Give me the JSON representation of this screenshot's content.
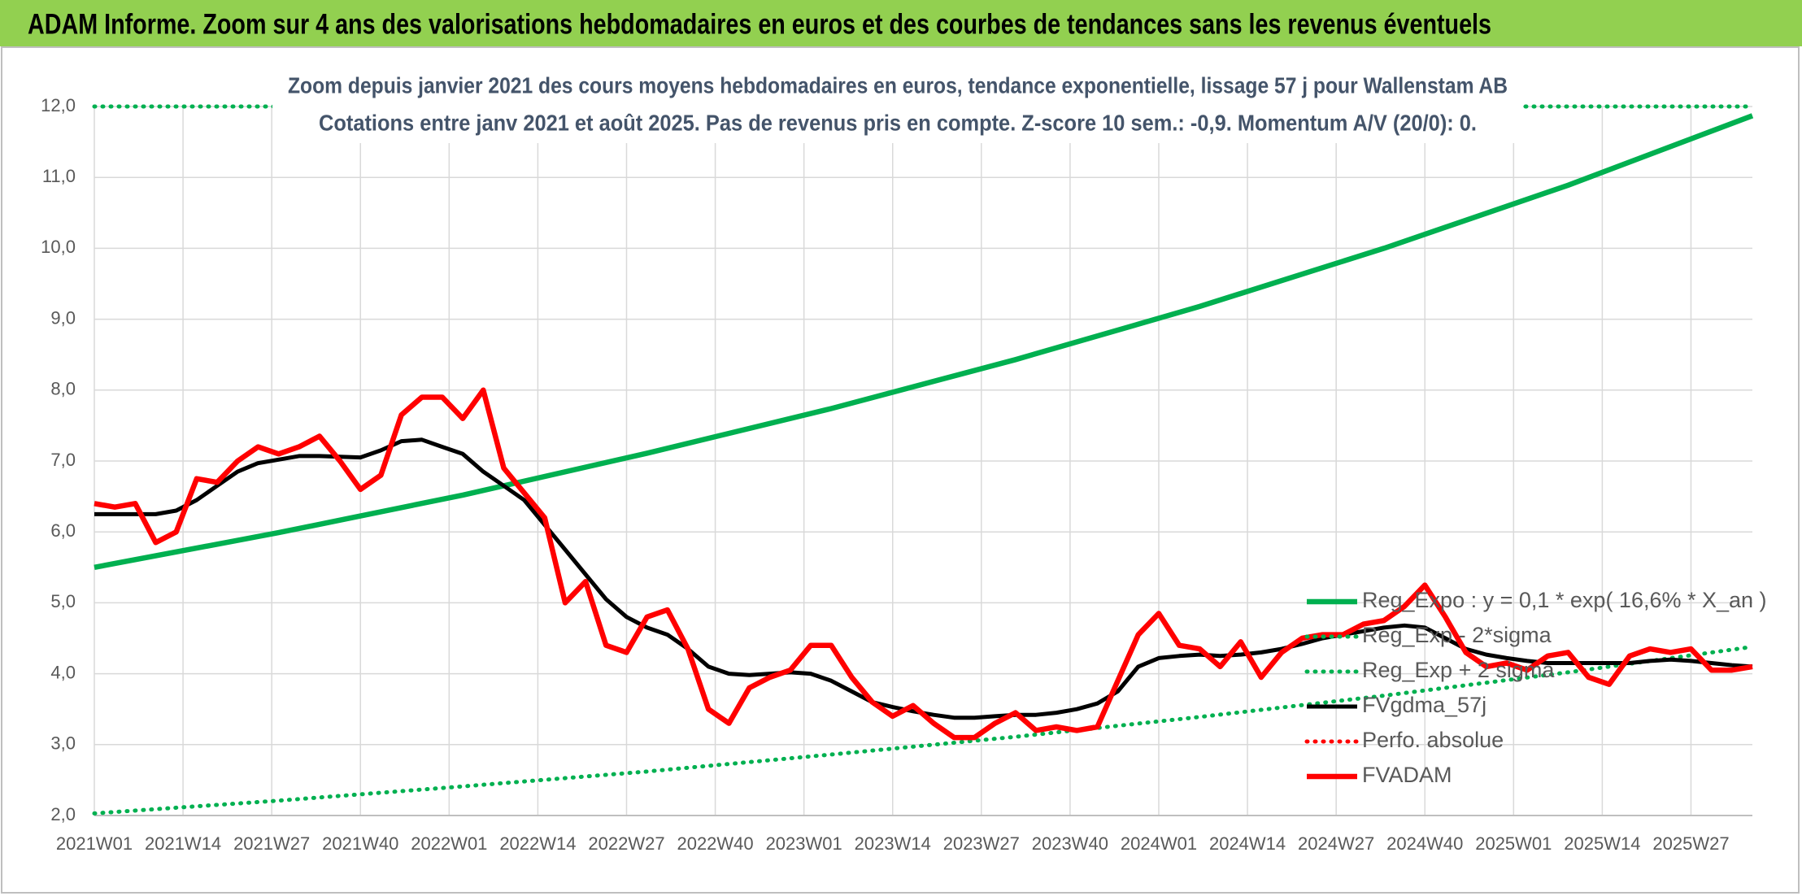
{
  "chart_data": {
    "type": "line",
    "title": "ADAM Informe. Zoom sur 4 ans des valorisations hebdomadaires en euros et des courbes de tendances sans les revenus éventuels",
    "subtitle": [
      "Zoom depuis janvier 2021 des cours moyens hebdomadaires en euros, tendance exponentielle, lissage 57 j pour Wallenstam AB",
      "Cotations entre janv 2021 et août 2025. Pas de revenus pris en compte. Z-score 10 sem.: -0,9. Momentum A/V (20/0): 0."
    ],
    "xlim": [
      0,
      243
    ],
    "xticks": [
      {
        "value": 0,
        "label": "2021W01"
      },
      {
        "value": 13,
        "label": "2021W14"
      },
      {
        "value": 26,
        "label": "2021W27"
      },
      {
        "value": 39,
        "label": "2021W40"
      },
      {
        "value": 52,
        "label": "2022W01"
      },
      {
        "value": 65,
        "label": "2022W14"
      },
      {
        "value": 78,
        "label": "2022W27"
      },
      {
        "value": 91,
        "label": "2022W40"
      },
      {
        "value": 104,
        "label": "2023W01"
      },
      {
        "value": 117,
        "label": "2023W14"
      },
      {
        "value": 130,
        "label": "2023W27"
      },
      {
        "value": 143,
        "label": "2023W40"
      },
      {
        "value": 156,
        "label": "2024W01"
      },
      {
        "value": 169,
        "label": "2024W14"
      },
      {
        "value": 182,
        "label": "2024W27"
      },
      {
        "value": 195,
        "label": "2024W40"
      },
      {
        "value": 208,
        "label": "2025W01"
      },
      {
        "value": 221,
        "label": "2025W14"
      },
      {
        "value": 234,
        "label": "2025W27"
      }
    ],
    "ylim": [
      2,
      12
    ],
    "yticks": [
      {
        "value": 2,
        "label": "2,0"
      },
      {
        "value": 3,
        "label": "3,0"
      },
      {
        "value": 4,
        "label": "4,0"
      },
      {
        "value": 5,
        "label": "5,0"
      },
      {
        "value": 6,
        "label": "6,0"
      },
      {
        "value": 7,
        "label": "7,0"
      },
      {
        "value": 8,
        "label": "8,0"
      },
      {
        "value": 9,
        "label": "9,0"
      },
      {
        "value": 10,
        "label": "10,0"
      },
      {
        "value": 11,
        "label": "11,0"
      },
      {
        "value": 12,
        "label": "12,0"
      }
    ],
    "grid": true,
    "legend": "lower right",
    "series": [
      {
        "name": "Reg_Expo : y = 0,1 * exp( 16,6% *  X_an )",
        "color": "#00b050",
        "dash": false,
        "x": [
          0,
          27,
          54,
          81,
          108,
          135,
          162,
          189,
          216,
          243
        ],
        "values": [
          5.5,
          5.99,
          6.52,
          7.11,
          7.74,
          8.43,
          9.18,
          10.0,
          10.89,
          11.87
        ]
      },
      {
        "name": "Reg_Exp - 2*sigma",
        "color": "#00b050",
        "dash": true,
        "x": [
          0,
          27,
          54,
          81,
          108,
          135,
          162,
          189,
          216,
          243
        ],
        "values": [
          2.03,
          2.21,
          2.41,
          2.62,
          2.86,
          3.11,
          3.39,
          3.69,
          4.02,
          4.38
        ]
      },
      {
        "name": "Reg_Exp + 2 sigma",
        "color": "#00b050",
        "dash": true,
        "x": [
          0,
          243
        ],
        "values": [
          12,
          12
        ]
      },
      {
        "name": "FVgdma_57j",
        "color": "#000000",
        "dash": false,
        "x": [
          0,
          3,
          6,
          9,
          12,
          15,
          18,
          21,
          24,
          27,
          30,
          33,
          36,
          39,
          42,
          45,
          48,
          51,
          54,
          57,
          60,
          63,
          66,
          69,
          72,
          75,
          78,
          81,
          84,
          87,
          90,
          93,
          96,
          99,
          102,
          105,
          108,
          111,
          114,
          117,
          120,
          123,
          126,
          129,
          132,
          135,
          138,
          141,
          144,
          147,
          150,
          153,
          156,
          159,
          162,
          165,
          168,
          171,
          174,
          177,
          180,
          183,
          186,
          189,
          192,
          195,
          198,
          201,
          204,
          207,
          210,
          213,
          216,
          219,
          222,
          225,
          228,
          231,
          234,
          237,
          240,
          243
        ],
        "values": [
          6.25,
          6.25,
          6.25,
          6.25,
          6.3,
          6.45,
          6.65,
          6.85,
          6.97,
          7.02,
          7.07,
          7.07,
          7.06,
          7.05,
          7.15,
          7.28,
          7.3,
          7.2,
          7.1,
          6.85,
          6.65,
          6.45,
          6.1,
          5.75,
          5.4,
          5.05,
          4.8,
          4.65,
          4.55,
          4.35,
          4.1,
          4.0,
          3.98,
          4.0,
          4.02,
          4.0,
          3.9,
          3.75,
          3.6,
          3.53,
          3.47,
          3.42,
          3.38,
          3.38,
          3.4,
          3.42,
          3.42,
          3.45,
          3.5,
          3.58,
          3.75,
          4.1,
          4.22,
          4.25,
          4.27,
          4.25,
          4.27,
          4.3,
          4.35,
          4.42,
          4.5,
          4.55,
          4.6,
          4.65,
          4.68,
          4.65,
          4.5,
          4.35,
          4.27,
          4.22,
          4.18,
          4.15,
          4.15,
          4.15,
          4.15,
          4.15,
          4.18,
          4.2,
          4.18,
          4.15,
          4.12,
          4.1
        ]
      },
      {
        "name": "Perfo. absolue",
        "color": "#ff0000",
        "dash": true,
        "x": [],
        "values": []
      },
      {
        "name": "FVADAM",
        "color": "#ff0000",
        "dash": false,
        "x": [
          0,
          3,
          6,
          9,
          12,
          15,
          18,
          21,
          24,
          27,
          30,
          33,
          36,
          39,
          42,
          45,
          48,
          51,
          54,
          57,
          60,
          63,
          66,
          69,
          72,
          75,
          78,
          81,
          84,
          87,
          90,
          93,
          96,
          99,
          102,
          105,
          108,
          111,
          114,
          117,
          120,
          123,
          126,
          129,
          132,
          135,
          138,
          141,
          144,
          147,
          150,
          153,
          156,
          159,
          162,
          165,
          168,
          171,
          174,
          177,
          180,
          183,
          186,
          189,
          192,
          195,
          198,
          201,
          204,
          207,
          210,
          213,
          216,
          219,
          222,
          225,
          228,
          231,
          234,
          237,
          240,
          243
        ],
        "values": [
          6.4,
          6.35,
          6.4,
          5.85,
          6.0,
          6.75,
          6.7,
          7.0,
          7.2,
          7.1,
          7.2,
          7.35,
          7.0,
          6.6,
          6.8,
          7.65,
          7.9,
          7.9,
          7.6,
          8.0,
          6.9,
          6.55,
          6.2,
          5.0,
          5.3,
          4.4,
          4.3,
          4.8,
          4.9,
          4.35,
          3.5,
          3.3,
          3.8,
          3.95,
          4.05,
          4.4,
          4.4,
          3.95,
          3.6,
          3.4,
          3.55,
          3.3,
          3.1,
          3.1,
          3.3,
          3.45,
          3.2,
          3.25,
          3.2,
          3.25,
          3.9,
          4.55,
          4.85,
          4.4,
          4.35,
          4.1,
          4.45,
          3.95,
          4.3,
          4.5,
          4.55,
          4.55,
          4.7,
          4.75,
          4.95,
          5.25,
          4.8,
          4.3,
          4.1,
          4.15,
          4.05,
          4.25,
          4.3,
          3.95,
          3.85,
          4.25,
          4.35,
          4.3,
          4.35,
          4.05,
          4.05,
          4.1
        ]
      }
    ]
  }
}
